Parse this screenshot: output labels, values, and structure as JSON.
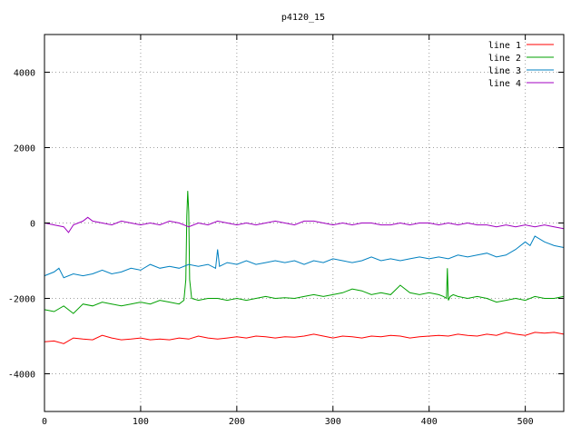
{
  "chart_data": {
    "type": "line",
    "title": "p4120_15",
    "xlabel": "",
    "ylabel": "",
    "xlim": [
      0,
      540
    ],
    "ylim": [
      -5000,
      5000
    ],
    "xticks": [
      0,
      100,
      200,
      300,
      400,
      500
    ],
    "yticks": [
      -4000,
      -2000,
      0,
      2000,
      4000
    ],
    "grid": true,
    "legend_position": "top-right",
    "series": [
      {
        "name": "line 1",
        "color": "#ff0000",
        "x": [
          0,
          10,
          20,
          30,
          40,
          50,
          60,
          70,
          80,
          90,
          100,
          110,
          120,
          130,
          140,
          150,
          160,
          170,
          180,
          190,
          200,
          210,
          220,
          230,
          240,
          250,
          260,
          270,
          280,
          290,
          300,
          310,
          320,
          330,
          340,
          350,
          360,
          370,
          380,
          390,
          400,
          410,
          420,
          430,
          440,
          450,
          460,
          470,
          480,
          490,
          500,
          510,
          520,
          530,
          540
        ],
        "y": [
          -3150,
          -3130,
          -3200,
          -3050,
          -3080,
          -3100,
          -2980,
          -3050,
          -3100,
          -3080,
          -3050,
          -3100,
          -3080,
          -3100,
          -3050,
          -3080,
          -3000,
          -3050,
          -3080,
          -3050,
          -3020,
          -3050,
          -3000,
          -3020,
          -3050,
          -3020,
          -3030,
          -3000,
          -2950,
          -3000,
          -3050,
          -3000,
          -3020,
          -3050,
          -3000,
          -3020,
          -2980,
          -3000,
          -3050,
          -3020,
          -3000,
          -2980,
          -3000,
          -2950,
          -2980,
          -3000,
          -2950,
          -2980,
          -2900,
          -2950,
          -2980,
          -2900,
          -2920,
          -2900,
          -2950
        ]
      },
      {
        "name": "line 2",
        "color": "#00a000",
        "x": [
          0,
          10,
          20,
          30,
          40,
          50,
          60,
          70,
          80,
          90,
          100,
          110,
          120,
          130,
          140,
          145,
          147,
          148,
          149,
          150,
          151,
          153,
          160,
          170,
          180,
          190,
          200,
          210,
          220,
          230,
          240,
          250,
          260,
          270,
          280,
          290,
          300,
          310,
          320,
          330,
          340,
          350,
          360,
          370,
          380,
          390,
          400,
          410,
          415,
          418,
          419,
          420,
          421,
          422,
          425,
          430,
          440,
          450,
          460,
          470,
          480,
          490,
          500,
          510,
          520,
          530,
          540
        ],
        "y": [
          -2300,
          -2350,
          -2200,
          -2400,
          -2150,
          -2200,
          -2100,
          -2150,
          -2200,
          -2150,
          -2100,
          -2150,
          -2050,
          -2100,
          -2150,
          -2050,
          -1500,
          200,
          850,
          300,
          -1500,
          -2000,
          -2050,
          -2000,
          -2000,
          -2050,
          -2000,
          -2050,
          -2000,
          -1950,
          -2000,
          -1980,
          -2000,
          -1950,
          -1900,
          -1950,
          -1900,
          -1850,
          -1750,
          -1800,
          -1900,
          -1850,
          -1900,
          -1650,
          -1850,
          -1900,
          -1850,
          -1900,
          -1950,
          -2000,
          -1200,
          -2050,
          -2000,
          -1950,
          -1900,
          -1950,
          -2000,
          -1950,
          -2000,
          -2100,
          -2050,
          -2000,
          -2050,
          -1950,
          -2000,
          -2000,
          -1950
        ]
      },
      {
        "name": "line 3",
        "color": "#0080c0",
        "x": [
          0,
          10,
          15,
          20,
          30,
          40,
          50,
          60,
          70,
          80,
          90,
          100,
          110,
          120,
          130,
          140,
          150,
          160,
          170,
          178,
          180,
          182,
          190,
          200,
          210,
          220,
          230,
          240,
          250,
          260,
          270,
          280,
          290,
          300,
          310,
          320,
          330,
          340,
          350,
          360,
          370,
          380,
          390,
          400,
          410,
          420,
          430,
          440,
          450,
          460,
          470,
          480,
          490,
          500,
          505,
          510,
          520,
          530,
          540
        ],
        "y": [
          -1400,
          -1300,
          -1200,
          -1450,
          -1350,
          -1400,
          -1350,
          -1250,
          -1350,
          -1300,
          -1200,
          -1250,
          -1100,
          -1200,
          -1150,
          -1200,
          -1100,
          -1150,
          -1100,
          -1200,
          -700,
          -1150,
          -1050,
          -1100,
          -1000,
          -1100,
          -1050,
          -1000,
          -1050,
          -1000,
          -1100,
          -1000,
          -1050,
          -950,
          -1000,
          -1050,
          -1000,
          -900,
          -1000,
          -950,
          -1000,
          -950,
          -900,
          -950,
          -900,
          -950,
          -850,
          -900,
          -850,
          -800,
          -900,
          -850,
          -700,
          -500,
          -600,
          -350,
          -500,
          -600,
          -650
        ]
      },
      {
        "name": "line 4",
        "color": "#a000c0",
        "x": [
          0,
          10,
          20,
          25,
          30,
          40,
          45,
          50,
          60,
          70,
          80,
          90,
          100,
          110,
          120,
          130,
          140,
          150,
          160,
          170,
          180,
          190,
          200,
          210,
          220,
          230,
          240,
          250,
          260,
          270,
          280,
          290,
          300,
          310,
          320,
          330,
          340,
          350,
          360,
          370,
          380,
          390,
          400,
          410,
          420,
          430,
          440,
          450,
          460,
          470,
          480,
          490,
          500,
          510,
          520,
          530,
          540
        ],
        "y": [
          0,
          -50,
          -100,
          -250,
          -50,
          50,
          150,
          50,
          0,
          -50,
          50,
          0,
          -50,
          0,
          -50,
          50,
          0,
          -100,
          0,
          -50,
          50,
          0,
          -50,
          0,
          -50,
          0,
          50,
          0,
          -50,
          50,
          50,
          0,
          -50,
          0,
          -50,
          0,
          0,
          -50,
          -50,
          0,
          -50,
          0,
          0,
          -50,
          0,
          -50,
          0,
          -50,
          -50,
          -100,
          -50,
          -100,
          -50,
          -100,
          -50,
          -100,
          -150
        ]
      }
    ]
  }
}
